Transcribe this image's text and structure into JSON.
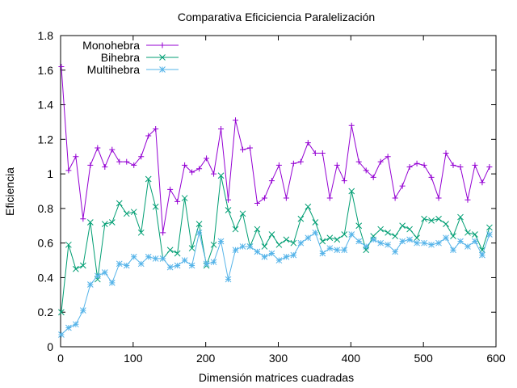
{
  "chart_data": {
    "type": "line",
    "title": "Comparativa Eficiciencia Paralelización",
    "xlabel": "Dimensión matrices cuadradas",
    "ylabel": "Eficiencia",
    "xlim": [
      0,
      600
    ],
    "ylim": [
      0,
      1.8
    ],
    "xticks": [
      0,
      100,
      200,
      300,
      400,
      500,
      600
    ],
    "yticks": [
      0,
      0.2,
      0.4,
      0.6,
      0.8,
      1,
      1.2,
      1.4,
      1.6,
      1.8
    ],
    "xtick_labels": [
      "0",
      "100",
      "200",
      "300",
      "400",
      "500",
      "600"
    ],
    "ytick_labels": [
      "0",
      "0.2",
      "0.4",
      "0.6",
      "0.8",
      "1",
      "1.2",
      "1.4",
      "1.6",
      "1.8"
    ],
    "grid": false,
    "legend_position": "top-left",
    "x": [
      1,
      11,
      21,
      31,
      41,
      51,
      61,
      71,
      81,
      91,
      101,
      111,
      121,
      131,
      141,
      151,
      161,
      171,
      181,
      191,
      201,
      211,
      221,
      231,
      241,
      251,
      261,
      271,
      281,
      291,
      301,
      311,
      321,
      331,
      341,
      351,
      361,
      371,
      381,
      391,
      401,
      411,
      421,
      431,
      441,
      451,
      461,
      471,
      481,
      491,
      501,
      511,
      521,
      531,
      541,
      551,
      561,
      571,
      581,
      591
    ],
    "series": [
      {
        "name": "Monohebra",
        "color": "#9400d3",
        "marker": "plus",
        "values": [
          1.62,
          1.02,
          1.1,
          0.74,
          1.05,
          1.15,
          1.04,
          1.14,
          1.07,
          1.07,
          1.05,
          1.1,
          1.22,
          1.26,
          0.66,
          0.91,
          0.84,
          1.05,
          1.01,
          1.03,
          1.09,
          1.0,
          1.26,
          0.85,
          1.31,
          1.14,
          1.15,
          0.83,
          0.86,
          0.96,
          1.05,
          0.86,
          1.06,
          1.07,
          1.18,
          1.12,
          1.12,
          0.86,
          1.05,
          0.96,
          1.28,
          1.07,
          1.02,
          0.98,
          1.07,
          1.1,
          0.86,
          0.93,
          1.04,
          1.06,
          1.05,
          0.98,
          0.86,
          1.12,
          1.05,
          1.04,
          0.85,
          1.05,
          0.95,
          1.04
        ]
      },
      {
        "name": "Bihebra",
        "color": "#009e73",
        "marker": "cross",
        "values": [
          0.2,
          0.59,
          0.45,
          0.47,
          0.72,
          0.39,
          0.71,
          0.72,
          0.83,
          0.77,
          0.78,
          0.66,
          0.97,
          0.81,
          0.51,
          0.56,
          0.54,
          0.86,
          0.57,
          0.71,
          0.47,
          0.59,
          0.99,
          0.79,
          0.68,
          0.77,
          0.58,
          0.68,
          0.58,
          0.65,
          0.59,
          0.62,
          0.6,
          0.74,
          0.81,
          0.72,
          0.61,
          0.63,
          0.62,
          0.65,
          0.9,
          0.7,
          0.56,
          0.64,
          0.68,
          0.66,
          0.64,
          0.7,
          0.68,
          0.63,
          0.74,
          0.73,
          0.74,
          0.71,
          0.64,
          0.75,
          0.66,
          0.65,
          0.56,
          0.69
        ]
      },
      {
        "name": "Multihebra",
        "color": "#56b4e9",
        "marker": "star",
        "values": [
          0.07,
          0.11,
          0.13,
          0.21,
          0.36,
          0.41,
          0.43,
          0.37,
          0.48,
          0.47,
          0.52,
          0.48,
          0.52,
          0.51,
          0.51,
          0.46,
          0.47,
          0.5,
          0.47,
          0.66,
          0.48,
          0.49,
          0.61,
          0.39,
          0.56,
          0.58,
          0.58,
          0.55,
          0.52,
          0.54,
          0.5,
          0.52,
          0.53,
          0.6,
          0.63,
          0.66,
          0.54,
          0.57,
          0.56,
          0.56,
          0.65,
          0.61,
          0.58,
          0.62,
          0.6,
          0.59,
          0.55,
          0.61,
          0.62,
          0.6,
          0.6,
          0.59,
          0.6,
          0.63,
          0.56,
          0.61,
          0.58,
          0.61,
          0.53,
          0.65
        ]
      }
    ]
  }
}
